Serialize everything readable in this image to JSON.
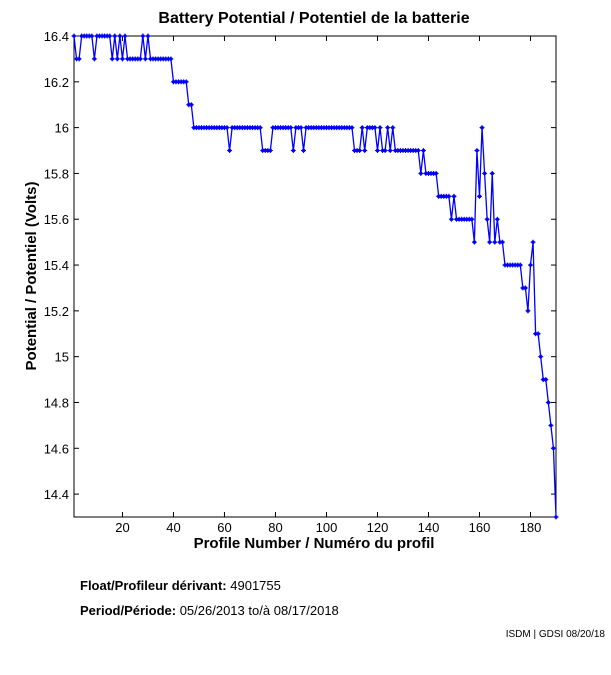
{
  "chart_data": {
    "type": "line",
    "title": "Battery Potential / Potentiel de la batterie",
    "xlabel": "Profile Number / Numéro du profil",
    "ylabel": "Potential / Potentiel (Volts)",
    "xlim": [
      1,
      190
    ],
    "ylim": [
      14.3,
      16.4
    ],
    "xticks": [
      20,
      40,
      60,
      80,
      100,
      120,
      140,
      160,
      180
    ],
    "yticks": [
      14.4,
      14.6,
      14.8,
      15,
      15.2,
      15.4,
      15.6,
      15.8,
      16,
      16.2,
      16.4
    ],
    "ytick_labels": [
      "14.4",
      "14.6",
      "14.8",
      "15",
      "15.2",
      "15.4",
      "15.6",
      "15.8",
      "16",
      "16.2",
      "16.4"
    ],
    "grid": false,
    "color": "#0000ff",
    "marker": "dot",
    "x_start": 1,
    "values": [
      16.4,
      16.3,
      16.3,
      16.4,
      16.4,
      16.4,
      16.4,
      16.4,
      16.3,
      16.4,
      16.4,
      16.4,
      16.4,
      16.4,
      16.4,
      16.3,
      16.4,
      16.3,
      16.4,
      16.3,
      16.4,
      16.3,
      16.3,
      16.3,
      16.3,
      16.3,
      16.3,
      16.4,
      16.3,
      16.4,
      16.3,
      16.3,
      16.3,
      16.3,
      16.3,
      16.3,
      16.3,
      16.3,
      16.3,
      16.2,
      16.2,
      16.2,
      16.2,
      16.2,
      16.2,
      16.1,
      16.1,
      16.0,
      16.0,
      16.0,
      16.0,
      16.0,
      16.0,
      16.0,
      16.0,
      16.0,
      16.0,
      16.0,
      16.0,
      16.0,
      16.0,
      15.9,
      16.0,
      16.0,
      16.0,
      16.0,
      16.0,
      16.0,
      16.0,
      16.0,
      16.0,
      16.0,
      16.0,
      16.0,
      15.9,
      15.9,
      15.9,
      15.9,
      16.0,
      16.0,
      16.0,
      16.0,
      16.0,
      16.0,
      16.0,
      16.0,
      15.9,
      16.0,
      16.0,
      16.0,
      15.9,
      16.0,
      16.0,
      16.0,
      16.0,
      16.0,
      16.0,
      16.0,
      16.0,
      16.0,
      16.0,
      16.0,
      16.0,
      16.0,
      16.0,
      16.0,
      16.0,
      16.0,
      16.0,
      16.0,
      15.9,
      15.9,
      15.9,
      16.0,
      15.9,
      16.0,
      16.0,
      16.0,
      16.0,
      15.9,
      16.0,
      15.9,
      15.9,
      16.0,
      15.9,
      16.0,
      15.9,
      15.9,
      15.9,
      15.9,
      15.9,
      15.9,
      15.9,
      15.9,
      15.9,
      15.9,
      15.8,
      15.9,
      15.8,
      15.8,
      15.8,
      15.8,
      15.8,
      15.7,
      15.7,
      15.7,
      15.7,
      15.7,
      15.6,
      15.7,
      15.6,
      15.6,
      15.6,
      15.6,
      15.6,
      15.6,
      15.6,
      15.5,
      15.9,
      15.7,
      16.0,
      15.8,
      15.6,
      15.5,
      15.8,
      15.5,
      15.6,
      15.5,
      15.5,
      15.4,
      15.4,
      15.4,
      15.4,
      15.4,
      15.4,
      15.4,
      15.3,
      15.3,
      15.2,
      15.4,
      15.5,
      15.1,
      15.1,
      15.0,
      14.9,
      14.9,
      14.8,
      14.7,
      14.6,
      14.3
    ]
  },
  "info": {
    "float_label": "Float/Profileur dérivant:",
    "float_value": "4901755",
    "period_label": "Period/Période:",
    "period_start": "05/26/2013",
    "period_sep": "to/à",
    "period_end": "08/17/2018"
  },
  "footer": "ISDM | GDSI 08/20/18"
}
